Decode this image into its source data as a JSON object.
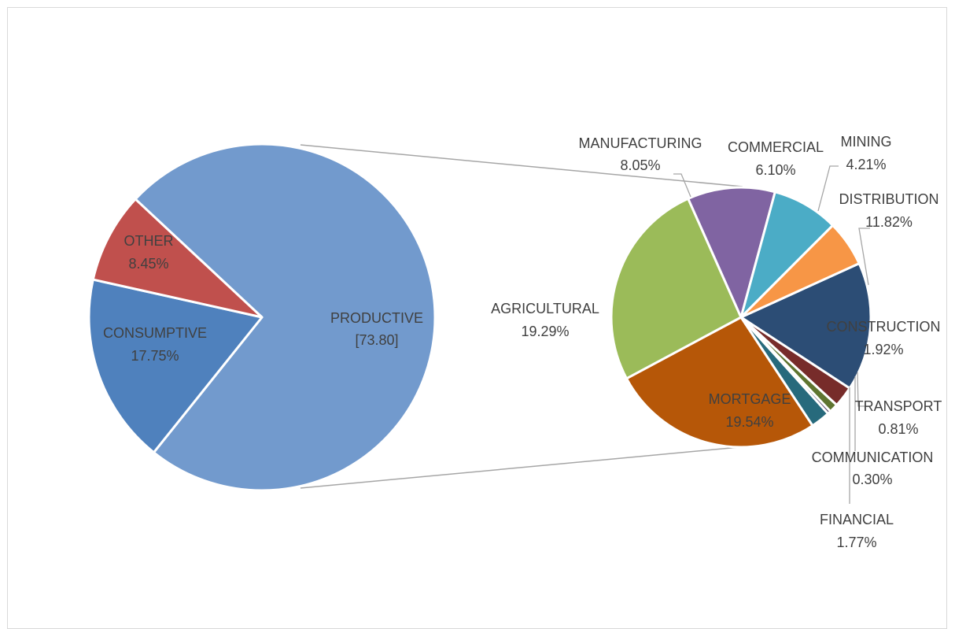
{
  "chart_data": {
    "type": "pie",
    "subtype": "pie-of-pie",
    "main_pie": {
      "slices": [
        {
          "key": "productive",
          "label": "PRODUCTIVE",
          "value_text": "[73.80]",
          "value": 73.8,
          "color": "#729acd"
        },
        {
          "key": "consumptive",
          "label": "CONSUMPTIVE",
          "value_text": "17.75%",
          "value": 17.75,
          "color": "#4f81bd"
        },
        {
          "key": "other",
          "label": "OTHER",
          "value_text": "8.45%",
          "value": 8.45,
          "color": "#c0504d"
        }
      ]
    },
    "secondary_pie": {
      "slices": [
        {
          "key": "distribution",
          "label": "DISTRIBUTION",
          "value_text": "11.82%",
          "value": 11.82,
          "color": "#2c4d75"
        },
        {
          "key": "construction",
          "label": "CONSTRUCTION",
          "value_text": "1.92%",
          "value": 1.92,
          "color": "#772c2a"
        },
        {
          "key": "transport",
          "label": "TRANSPORT",
          "value_text": "0.81%",
          "value": 0.81,
          "color": "#5f7530"
        },
        {
          "key": "communication",
          "label": "COMMUNICATION",
          "value_text": "0.30%",
          "value": 0.3,
          "color": "#4d3b62"
        },
        {
          "key": "financial",
          "label": "FINANCIAL",
          "value_text": "1.77%",
          "value": 1.77,
          "color": "#276a7c"
        },
        {
          "key": "mortgage",
          "label": "MORTGAGE",
          "value_text": "19.54%",
          "value": 19.54,
          "color": "#b65708"
        },
        {
          "key": "agricultural",
          "label": "AGRICULTURAL",
          "value_text": "19.29%",
          "value": 19.29,
          "color": "#9bbb59"
        },
        {
          "key": "manufacturing",
          "label": "MANUFACTURING",
          "value_text": "8.05%",
          "value": 8.05,
          "color": "#8064a2"
        },
        {
          "key": "commercial",
          "label": "COMMERCIAL",
          "value_text": "6.10%",
          "value": 6.1,
          "color": "#4bacc6"
        },
        {
          "key": "mining",
          "label": "MINING",
          "value_text": "4.21%",
          "value": 4.21,
          "color": "#f79646"
        }
      ]
    },
    "title": "",
    "legend": "none"
  }
}
